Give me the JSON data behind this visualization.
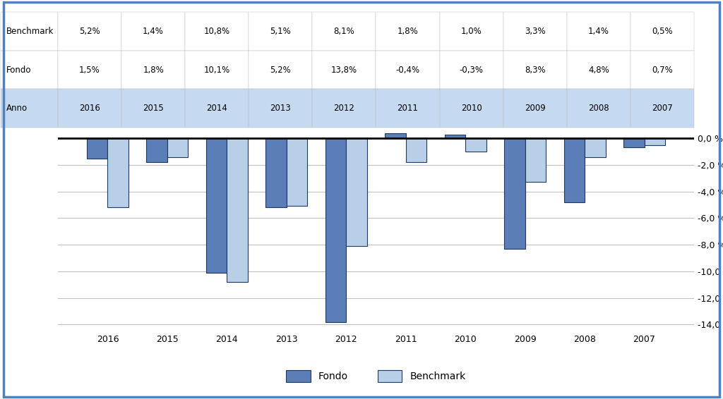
{
  "years": [
    "2007",
    "2008",
    "2009",
    "2010",
    "2011",
    "2012",
    "2013",
    "2014",
    "2015",
    "2016"
  ],
  "fondo": [
    -0.7,
    -4.8,
    -8.3,
    0.3,
    0.4,
    -13.8,
    -5.2,
    -10.1,
    -1.8,
    -1.5
  ],
  "benchmark": [
    -0.5,
    -1.4,
    -3.3,
    -1.0,
    -1.8,
    -8.1,
    -5.1,
    -10.8,
    -1.4,
    -5.2
  ],
  "fondo_display": [
    "0,7%",
    "4,8%",
    "8,3%",
    "-0,3%",
    "-0,4%",
    "13,8%",
    "5,2%",
    "10,1%",
    "1,8%",
    "1,5%"
  ],
  "benchmark_display": [
    "0,5%",
    "1,4%",
    "3,3%",
    "1,0%",
    "1,8%",
    "8,1%",
    "5,1%",
    "10,8%",
    "1,4%",
    "5,2%"
  ],
  "fondo_color": "#5b7db8",
  "benchmark_color": "#b8cfe8",
  "legend_fondo": "Fondo",
  "legend_benchmark": "Benchmark",
  "yticks": [
    0.0,
    -2.0,
    -4.0,
    -6.0,
    -8.0,
    -10.0,
    -12.0,
    -14.0
  ],
  "ylim": [
    -14.5,
    0.5
  ],
  "background_color": "#ffffff",
  "table_header_color": "#c5d9f1",
  "border_color": "#4f81bd",
  "anno_label": "Anno",
  "fondo_label": "Fondo",
  "benchmark_label": "Benchmark"
}
